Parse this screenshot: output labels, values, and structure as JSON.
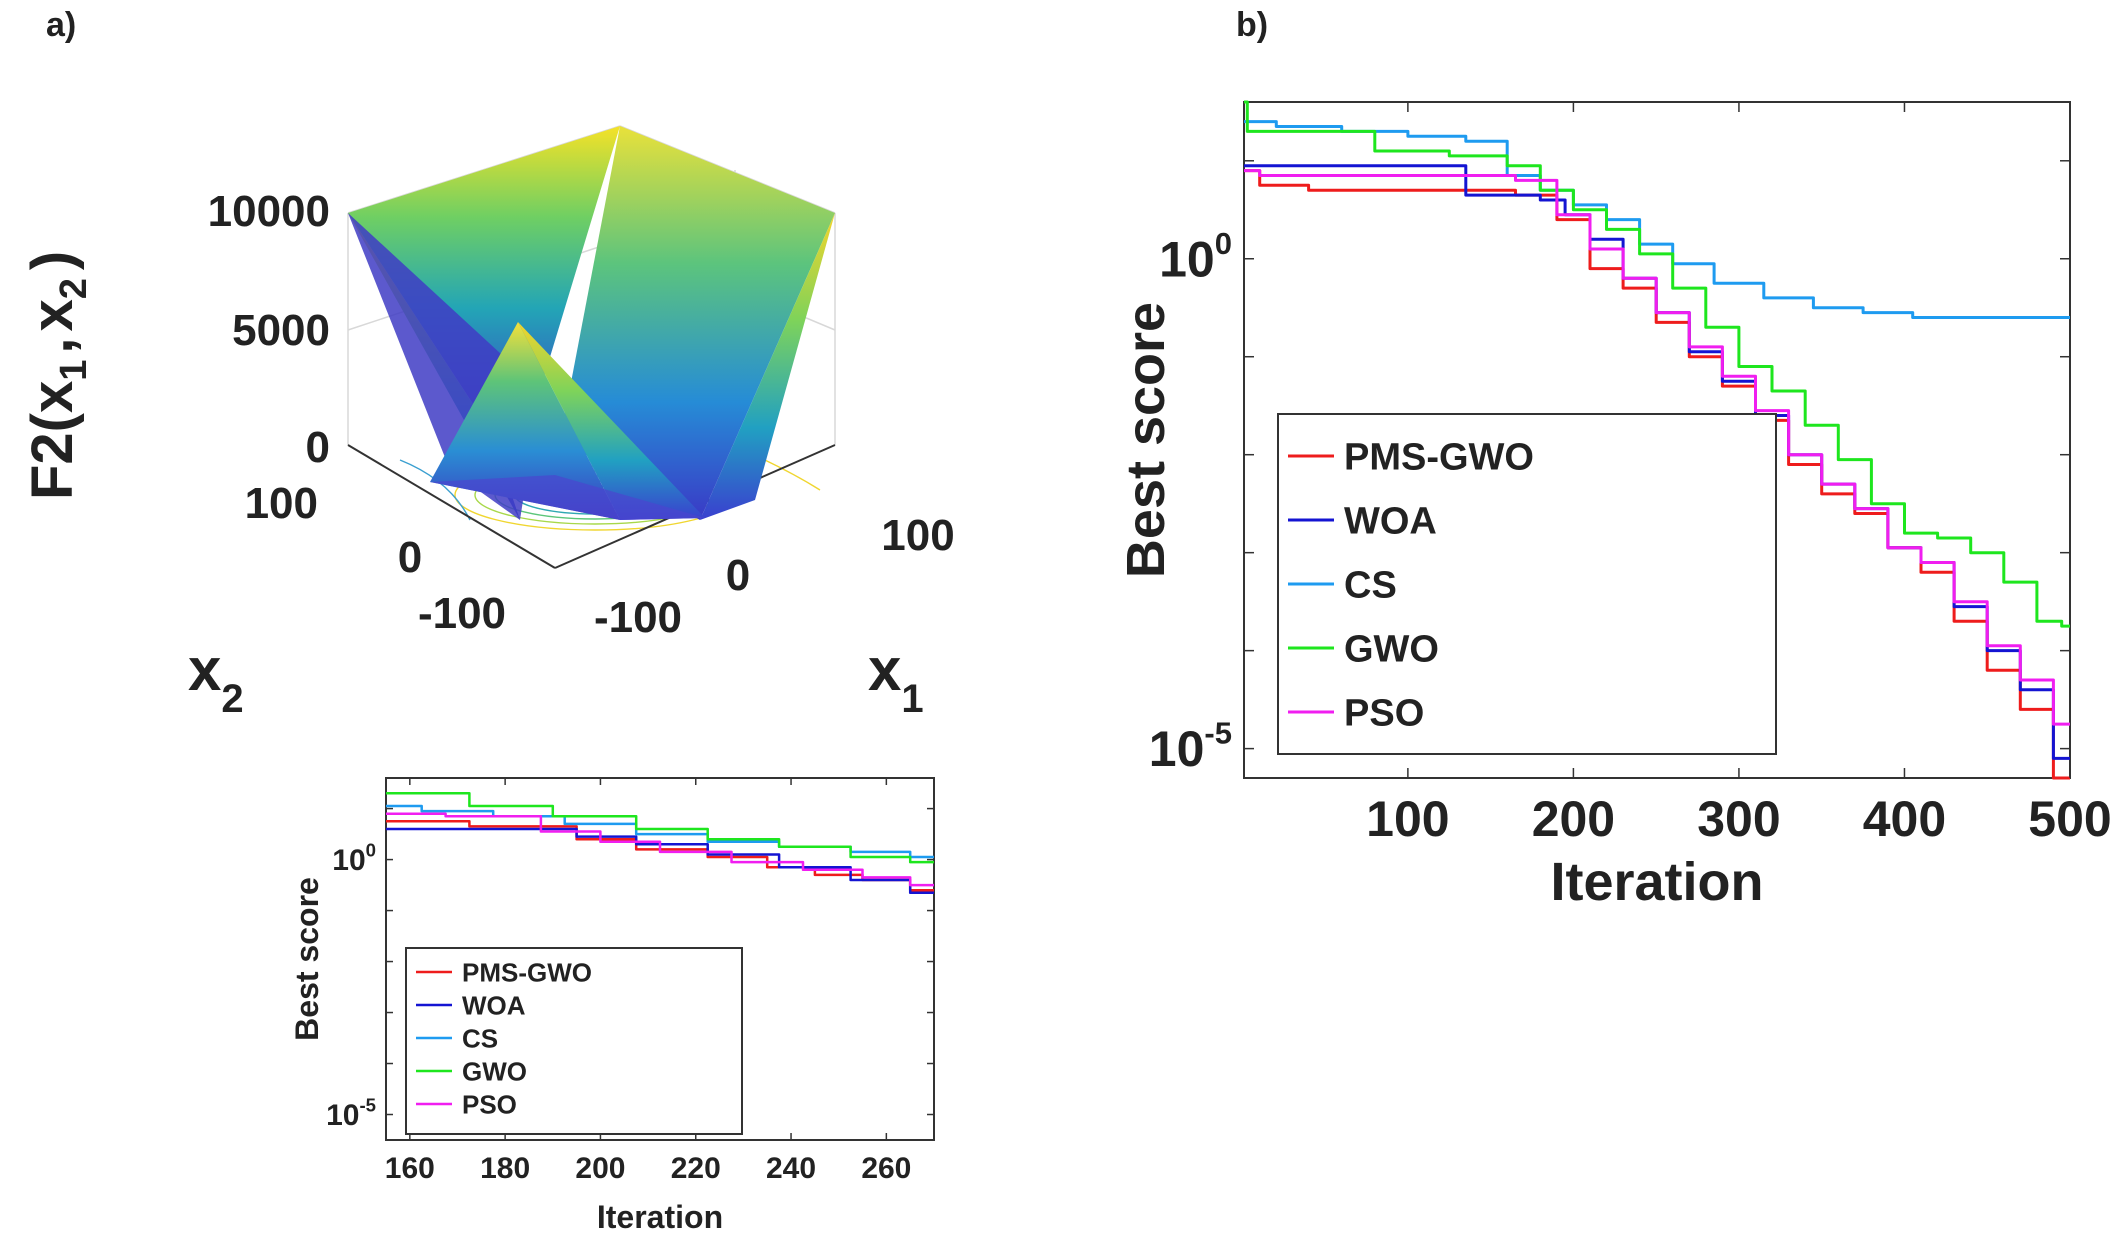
{
  "panels": {
    "a": "a)",
    "b": "b)"
  },
  "surface": {
    "zlabel_main": "F2(",
    "zlabel_var1": "x",
    "zlabel_sub1": "1",
    "zlabel_sep": ",",
    "zlabel_var2": "x",
    "zlabel_sub2": "2",
    "zlabel_close": ")",
    "zticks": [
      "10000",
      "5000",
      "0"
    ],
    "x1_ticks": [
      "-100",
      "0",
      "100"
    ],
    "x2_ticks": [
      "100",
      "0",
      "-100"
    ],
    "x1_label": "x",
    "x1_sub": "1",
    "x2_label": "x",
    "x2_sub": "2"
  },
  "colors": {
    "PMS-GWO": "#ee1c1c",
    "WOA": "#1414d2",
    "CS": "#1e9bf0",
    "GWO": "#1ee61e",
    "PSO": "#f01ef0"
  },
  "chart_data": [
    {
      "type": "line",
      "panel": "b)",
      "xlabel": "Iteration",
      "ylabel": "Best score",
      "xticks": [
        "100",
        "200",
        "300",
        "400",
        "500"
      ],
      "yticks": [
        {
          "base": "10",
          "exp": "0"
        },
        {
          "base": "10",
          "exp": "-5"
        }
      ],
      "xlim": [
        1,
        500
      ],
      "ylim_log10": [
        -5.3,
        1.6
      ],
      "yscale": "log",
      "legend_position": "lower-left",
      "series": [
        {
          "name": "PMS-GWO",
          "x": [
            1,
            20,
            60,
            100,
            150,
            180,
            200,
            220,
            240,
            260,
            280,
            300,
            320,
            340,
            360,
            380,
            400,
            420,
            440,
            460,
            480,
            500
          ],
          "log10y": [
            0.9,
            0.75,
            0.7,
            0.7,
            0.7,
            0.65,
            0.4,
            -0.1,
            -0.3,
            -0.65,
            -1.0,
            -1.3,
            -1.65,
            -2.1,
            -2.4,
            -2.6,
            -2.95,
            -3.2,
            -3.7,
            -4.2,
            -4.6,
            -5.3
          ]
        },
        {
          "name": "WOA",
          "x": [
            1,
            20,
            60,
            100,
            130,
            140,
            170,
            190,
            200,
            220,
            240,
            260,
            280,
            300,
            320,
            340,
            360,
            380,
            400,
            420,
            440,
            460,
            480,
            500
          ],
          "log10y": [
            0.95,
            0.95,
            0.95,
            0.95,
            0.95,
            0.65,
            0.65,
            0.6,
            0.45,
            0.2,
            -0.2,
            -0.55,
            -0.95,
            -1.25,
            -1.6,
            -2.0,
            -2.3,
            -2.55,
            -2.95,
            -3.1,
            -3.55,
            -4.0,
            -4.4,
            -5.1
          ]
        },
        {
          "name": "CS",
          "x": [
            1,
            40,
            80,
            120,
            150,
            170,
            190,
            210,
            230,
            250,
            270,
            300,
            330,
            360,
            390,
            420,
            460,
            500
          ],
          "log10y": [
            1.4,
            1.35,
            1.3,
            1.25,
            1.2,
            0.85,
            0.7,
            0.55,
            0.4,
            0.15,
            -0.05,
            -0.25,
            -0.4,
            -0.5,
            -0.55,
            -0.6,
            -0.6,
            -0.6
          ]
        },
        {
          "name": "GWO",
          "x": [
            1,
            5,
            20,
            60,
            100,
            150,
            170,
            190,
            210,
            230,
            250,
            270,
            290,
            310,
            330,
            350,
            370,
            390,
            410,
            430,
            450,
            470,
            490,
            500
          ],
          "log10y": [
            1.6,
            1.3,
            1.3,
            1.3,
            1.1,
            1.05,
            0.95,
            0.7,
            0.5,
            0.3,
            0.05,
            -0.3,
            -0.7,
            -1.1,
            -1.35,
            -1.7,
            -2.05,
            -2.5,
            -2.8,
            -2.85,
            -3.0,
            -3.3,
            -3.7,
            -3.75
          ]
        },
        {
          "name": "PSO",
          "x": [
            1,
            20,
            60,
            100,
            150,
            180,
            200,
            220,
            240,
            260,
            280,
            300,
            320,
            340,
            360,
            380,
            400,
            420,
            440,
            460,
            480,
            500
          ],
          "log10y": [
            0.9,
            0.85,
            0.85,
            0.85,
            0.85,
            0.8,
            0.45,
            0.1,
            -0.2,
            -0.55,
            -0.9,
            -1.2,
            -1.55,
            -2.0,
            -2.3,
            -2.55,
            -2.95,
            -3.1,
            -3.5,
            -3.95,
            -4.3,
            -4.75
          ]
        }
      ]
    },
    {
      "type": "line",
      "panel": "a) inset",
      "xlabel": "Iteration",
      "ylabel": "Best score",
      "xticks": [
        "160",
        "180",
        "200",
        "220",
        "240",
        "260"
      ],
      "yticks": [
        {
          "base": "10",
          "exp": "0"
        },
        {
          "base": "10",
          "exp": "-5"
        }
      ],
      "xlim": [
        155,
        270
      ],
      "ylim_log10": [
        -5.5,
        1.6
      ],
      "yscale": "log",
      "legend_position": "lower-left",
      "series": [
        {
          "name": "PMS-GWO",
          "x": [
            155,
            190,
            200,
            215,
            230,
            240,
            250,
            260,
            270
          ],
          "log10y": [
            0.75,
            0.65,
            0.4,
            0.2,
            0.05,
            -0.15,
            -0.3,
            -0.4,
            -0.6
          ]
        },
        {
          "name": "WOA",
          "x": [
            155,
            175,
            190,
            200,
            215,
            230,
            245,
            260,
            270
          ],
          "log10y": [
            0.6,
            0.6,
            0.6,
            0.45,
            0.3,
            0.1,
            -0.15,
            -0.4,
            -0.65
          ]
        },
        {
          "name": "CS",
          "x": [
            155,
            170,
            185,
            200,
            215,
            230,
            245,
            260,
            270
          ],
          "log10y": [
            1.05,
            0.95,
            0.85,
            0.7,
            0.5,
            0.35,
            0.25,
            0.15,
            0.05
          ]
        },
        {
          "name": "GWO",
          "x": [
            155,
            165,
            180,
            200,
            215,
            230,
            245,
            260,
            270
          ],
          "log10y": [
            1.3,
            1.3,
            1.05,
            0.85,
            0.6,
            0.4,
            0.25,
            0.05,
            -0.05
          ]
        },
        {
          "name": "PSO",
          "x": [
            155,
            180,
            195,
            205,
            220,
            235,
            250,
            260,
            270
          ],
          "log10y": [
            0.9,
            0.85,
            0.55,
            0.35,
            0.15,
            -0.05,
            -0.2,
            -0.35,
            -0.5
          ]
        }
      ]
    }
  ]
}
